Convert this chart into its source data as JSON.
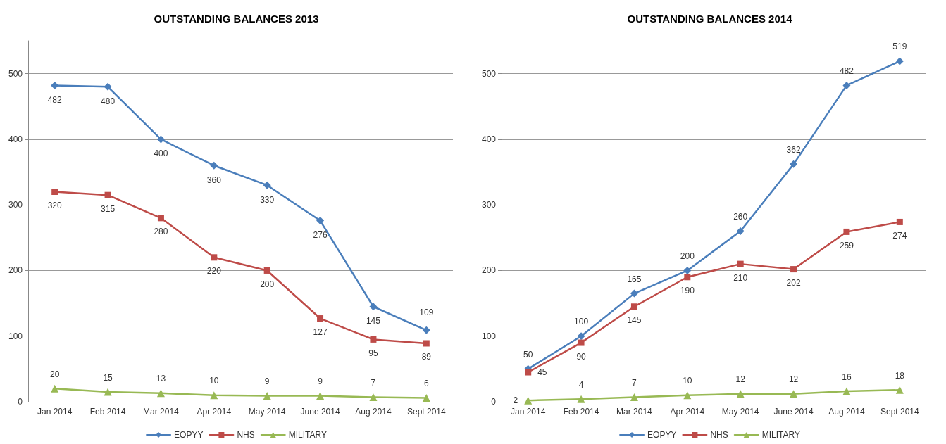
{
  "chart_data": [
    {
      "type": "line",
      "title": "OUTSTANDING BALANCES 2013",
      "categories": [
        "Jan 2014",
        "Feb 2014",
        "Mar 2014",
        "Apr 2014",
        "May 2014",
        "June 2014",
        "Aug 2014",
        "Sept 2014"
      ],
      "series": [
        {
          "name": "EOPYY",
          "color": "#4a7ebb",
          "marker": "diamond",
          "values": [
            482,
            480,
            400,
            360,
            330,
            276,
            145,
            109
          ]
        },
        {
          "name": "NHS",
          "color": "#be4b48",
          "marker": "square",
          "values": [
            320,
            315,
            280,
            220,
            200,
            127,
            95,
            89
          ]
        },
        {
          "name": "MILITARY",
          "color": "#98b954",
          "marker": "triangle",
          "values": [
            20,
            15,
            13,
            10,
            9,
            9,
            7,
            6
          ]
        }
      ],
      "ylim": [
        0,
        550
      ],
      "yticks": [
        0,
        100,
        200,
        300,
        400,
        500
      ],
      "grid": "y",
      "legend": "bottom",
      "data_labels": true,
      "line_style": "solid"
    },
    {
      "type": "line",
      "title": "OUTSTANDING BALANCES 2014",
      "categories": [
        "Jan 2014",
        "Feb 2014",
        "Mar 2014",
        "Apr 2014",
        "May 2014",
        "June 2014",
        "Aug 2014",
        "Sept 2014"
      ],
      "series": [
        {
          "name": "EOPYY",
          "color": "#4a7ebb",
          "marker": "diamond",
          "values": [
            50,
            100,
            165,
            200,
            260,
            362,
            482,
            519
          ]
        },
        {
          "name": "NHS",
          "color": "#be4b48",
          "marker": "square",
          "values": [
            45,
            90,
            145,
            190,
            210,
            202,
            259,
            274
          ]
        },
        {
          "name": "MILITARY",
          "color": "#98b954",
          "marker": "triangle",
          "values": [
            2,
            4,
            7,
            10,
            12,
            12,
            16,
            18
          ]
        }
      ],
      "ylim": [
        0,
        550
      ],
      "yticks": [
        0,
        100,
        200,
        300,
        400,
        500
      ],
      "grid": "y",
      "legend": "bottom",
      "data_labels": true,
      "line_style": "solid"
    }
  ]
}
